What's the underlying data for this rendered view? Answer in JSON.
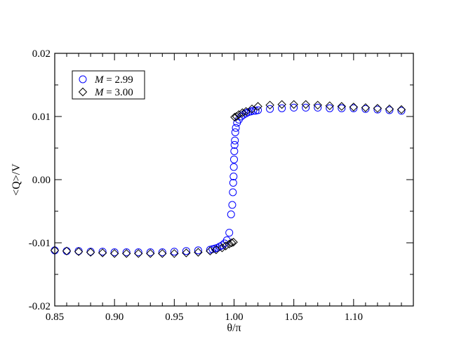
{
  "chart_data": {
    "type": "scatter",
    "title": "",
    "xlabel": "θ/π",
    "ylabel": "<Q>/V",
    "xlim": [
      0.85,
      1.15
    ],
    "ylim": [
      -0.02,
      0.02
    ],
    "x_ticks": [
      "0.85",
      "0.90",
      "0.95",
      "1.00",
      "1.05",
      "1.10"
    ],
    "x_tick_values": [
      0.85,
      0.9,
      0.95,
      1.0,
      1.05,
      1.1
    ],
    "y_ticks": [
      "-0.02",
      "-0.01",
      "0.00",
      "0.01",
      "0.02"
    ],
    "y_tick_values": [
      -0.02,
      -0.01,
      0.0,
      0.01,
      0.02
    ],
    "grid": false,
    "legend_position": "top-left",
    "series": [
      {
        "name_prefix": "M",
        "name_value": "= 2.99",
        "marker": "circle",
        "color": "#0000ff",
        "x": [
          0.85,
          0.86,
          0.87,
          0.88,
          0.89,
          0.9,
          0.91,
          0.92,
          0.93,
          0.94,
          0.95,
          0.96,
          0.97,
          0.98,
          0.982,
          0.984,
          0.986,
          0.988,
          0.99,
          0.992,
          0.994,
          0.996,
          0.9975,
          0.9985,
          0.999,
          0.9993,
          0.9996,
          0.9998,
          1.0,
          1.0002,
          1.0004,
          1.0007,
          1.001,
          1.0015,
          1.0025,
          1.004,
          1.006,
          1.008,
          1.01,
          1.012,
          1.014,
          1.016,
          1.018,
          1.02,
          1.03,
          1.04,
          1.05,
          1.06,
          1.07,
          1.08,
          1.09,
          1.1,
          1.11,
          1.12,
          1.13,
          1.14
        ],
        "y": [
          -0.0112,
          -0.0113,
          -0.0113,
          -0.0114,
          -0.0114,
          -0.0115,
          -0.0115,
          -0.0115,
          -0.0115,
          -0.0115,
          -0.0114,
          -0.0113,
          -0.0112,
          -0.0111,
          -0.011,
          -0.0109,
          -0.0108,
          -0.0106,
          -0.0104,
          -0.0101,
          -0.0096,
          -0.0084,
          -0.0055,
          -0.004,
          -0.002,
          -0.0005,
          0.0005,
          0.002,
          0.0032,
          0.0045,
          0.0055,
          0.0062,
          0.0075,
          0.0082,
          0.009,
          0.0095,
          0.01,
          0.0103,
          0.0105,
          0.0107,
          0.0108,
          0.0109,
          0.0109,
          0.011,
          0.0112,
          0.0113,
          0.0114,
          0.0114,
          0.0114,
          0.0113,
          0.0113,
          0.0113,
          0.0112,
          0.0111,
          0.011,
          0.0109
        ]
      },
      {
        "name_prefix": "M",
        "name_value": "= 3.00",
        "marker": "diamond",
        "color": "#000000",
        "x": [
          0.85,
          0.86,
          0.87,
          0.88,
          0.89,
          0.9,
          0.91,
          0.92,
          0.93,
          0.94,
          0.95,
          0.96,
          0.97,
          0.98,
          0.985,
          0.99,
          0.993,
          0.996,
          0.998,
          0.9995,
          1.0005,
          1.002,
          1.004,
          1.007,
          1.01,
          1.015,
          1.02,
          1.03,
          1.04,
          1.05,
          1.06,
          1.07,
          1.08,
          1.09,
          1.1,
          1.11,
          1.12,
          1.13,
          1.14
        ],
        "y": [
          -0.0112,
          -0.0113,
          -0.0114,
          -0.0115,
          -0.0116,
          -0.0117,
          -0.0117,
          -0.0117,
          -0.0117,
          -0.0117,
          -0.0117,
          -0.0116,
          -0.0115,
          -0.0113,
          -0.0111,
          -0.0108,
          -0.0105,
          -0.0102,
          -0.01,
          -0.0099,
          0.0099,
          0.01,
          0.0103,
          0.0106,
          0.0108,
          0.0112,
          0.0116,
          0.0118,
          0.0119,
          0.0119,
          0.0119,
          0.0118,
          0.0117,
          0.0116,
          0.0115,
          0.0114,
          0.0113,
          0.0112,
          0.0111
        ]
      }
    ]
  }
}
